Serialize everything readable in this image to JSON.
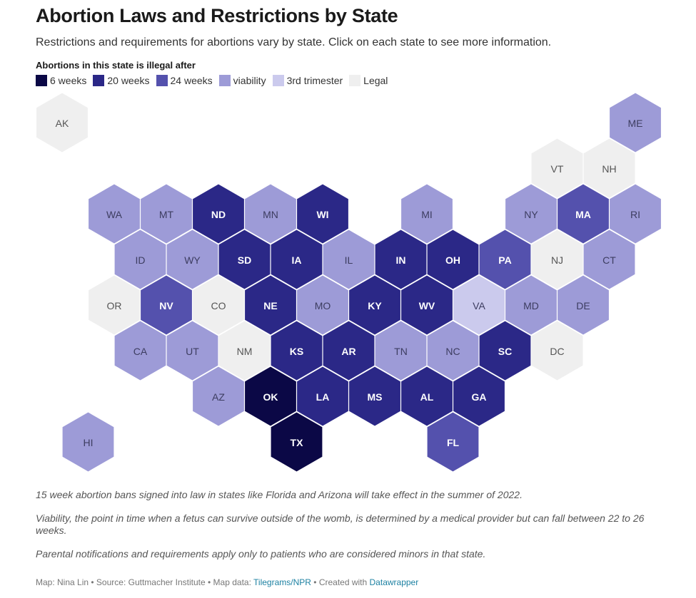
{
  "header": {
    "title": "Abortion Laws and Restrictions by State",
    "subtitle": "Restrictions and requirements for abortions vary by state. Click on each state to see more information."
  },
  "legend": {
    "title": "Abortions in this state is illegal after",
    "items": [
      {
        "label": "6 weeks",
        "color": "#0b0846"
      },
      {
        "label": "20 weeks",
        "color": "#2b2887"
      },
      {
        "label": "24 weeks",
        "color": "#5451ad"
      },
      {
        "label": "viability",
        "color": "#9d9bd7"
      },
      {
        "label": "3rd trimester",
        "color": "#cbcaed"
      },
      {
        "label": "Legal",
        "color": "#efefef"
      }
    ]
  },
  "states": [
    {
      "abbr": "AK",
      "cat": 5,
      "row": 0,
      "col": 0
    },
    {
      "abbr": "ME",
      "cat": 3,
      "row": 0,
      "col": 11
    },
    {
      "abbr": "VT",
      "cat": 5,
      "row": 1,
      "col": 9.5
    },
    {
      "abbr": "NH",
      "cat": 5,
      "row": 1,
      "col": 10.5
    },
    {
      "abbr": "WA",
      "cat": 3,
      "row": 2,
      "col": 1
    },
    {
      "abbr": "MT",
      "cat": 3,
      "row": 2,
      "col": 2
    },
    {
      "abbr": "ND",
      "cat": 1,
      "row": 2,
      "col": 3
    },
    {
      "abbr": "MN",
      "cat": 3,
      "row": 2,
      "col": 4
    },
    {
      "abbr": "WI",
      "cat": 1,
      "row": 2,
      "col": 5
    },
    {
      "abbr": "MI",
      "cat": 3,
      "row": 2,
      "col": 7
    },
    {
      "abbr": "NY",
      "cat": 3,
      "row": 2,
      "col": 9
    },
    {
      "abbr": "MA",
      "cat": 2,
      "row": 2,
      "col": 10
    },
    {
      "abbr": "RI",
      "cat": 3,
      "row": 2,
      "col": 11
    },
    {
      "abbr": "ID",
      "cat": 3,
      "row": 3,
      "col": 1.5
    },
    {
      "abbr": "WY",
      "cat": 3,
      "row": 3,
      "col": 2.5
    },
    {
      "abbr": "SD",
      "cat": 1,
      "row": 3,
      "col": 3.5
    },
    {
      "abbr": "IA",
      "cat": 1,
      "row": 3,
      "col": 4.5
    },
    {
      "abbr": "IL",
      "cat": 3,
      "row": 3,
      "col": 5.5
    },
    {
      "abbr": "IN",
      "cat": 1,
      "row": 3,
      "col": 6.5
    },
    {
      "abbr": "OH",
      "cat": 1,
      "row": 3,
      "col": 7.5
    },
    {
      "abbr": "PA",
      "cat": 2,
      "row": 3,
      "col": 8.5
    },
    {
      "abbr": "NJ",
      "cat": 5,
      "row": 3,
      "col": 9.5
    },
    {
      "abbr": "CT",
      "cat": 3,
      "row": 3,
      "col": 10.5
    },
    {
      "abbr": "OR",
      "cat": 5,
      "row": 4,
      "col": 1
    },
    {
      "abbr": "NV",
      "cat": 2,
      "row": 4,
      "col": 2
    },
    {
      "abbr": "CO",
      "cat": 5,
      "row": 4,
      "col": 3
    },
    {
      "abbr": "NE",
      "cat": 1,
      "row": 4,
      "col": 4
    },
    {
      "abbr": "MO",
      "cat": 3,
      "row": 4,
      "col": 5
    },
    {
      "abbr": "KY",
      "cat": 1,
      "row": 4,
      "col": 6
    },
    {
      "abbr": "WV",
      "cat": 1,
      "row": 4,
      "col": 7
    },
    {
      "abbr": "VA",
      "cat": 4,
      "row": 4,
      "col": 8
    },
    {
      "abbr": "MD",
      "cat": 3,
      "row": 4,
      "col": 9
    },
    {
      "abbr": "DE",
      "cat": 3,
      "row": 4,
      "col": 10
    },
    {
      "abbr": "CA",
      "cat": 3,
      "row": 5,
      "col": 1.5
    },
    {
      "abbr": "UT",
      "cat": 3,
      "row": 5,
      "col": 2.5
    },
    {
      "abbr": "NM",
      "cat": 5,
      "row": 5,
      "col": 3.5
    },
    {
      "abbr": "KS",
      "cat": 1,
      "row": 5,
      "col": 4.5
    },
    {
      "abbr": "AR",
      "cat": 1,
      "row": 5,
      "col": 5.5
    },
    {
      "abbr": "TN",
      "cat": 3,
      "row": 5,
      "col": 6.5
    },
    {
      "abbr": "NC",
      "cat": 3,
      "row": 5,
      "col": 7.5
    },
    {
      "abbr": "SC",
      "cat": 1,
      "row": 5,
      "col": 8.5
    },
    {
      "abbr": "DC",
      "cat": 5,
      "row": 5,
      "col": 9.5
    },
    {
      "abbr": "AZ",
      "cat": 3,
      "row": 6,
      "col": 3
    },
    {
      "abbr": "OK",
      "cat": 0,
      "row": 6,
      "col": 4
    },
    {
      "abbr": "LA",
      "cat": 1,
      "row": 6,
      "col": 5
    },
    {
      "abbr": "MS",
      "cat": 1,
      "row": 6,
      "col": 6
    },
    {
      "abbr": "AL",
      "cat": 1,
      "row": 6,
      "col": 7
    },
    {
      "abbr": "GA",
      "cat": 1,
      "row": 6,
      "col": 8
    },
    {
      "abbr": "HI",
      "cat": 3,
      "row": 7,
      "col": 0.5
    },
    {
      "abbr": "TX",
      "cat": 0,
      "row": 7,
      "col": 4.5
    },
    {
      "abbr": "FL",
      "cat": 2,
      "row": 7,
      "col": 7.5
    }
  ],
  "notes": [
    "15 week abortion bans signed into law in states like Florida and Arizona will take effect in the summer of 2022.",
    "Viability, the point in time when a fetus can survive outside of the womb, is determined by a medical provider but can fall between 22 to 26 weeks.",
    "Parental notifications and requirements apply only to patients who are considered minors in that state."
  ],
  "footer": {
    "author": "Map: Nina Lin",
    "sep1": " • ",
    "source": "Source: Guttmacher Institute",
    "sep2": " • ",
    "mapdata_prefix": "Map data: ",
    "mapdata_link": "Tilegrams/NPR",
    "sep3": " • ",
    "created_prefix": "Created with ",
    "created_link": "Datawrapper"
  }
}
